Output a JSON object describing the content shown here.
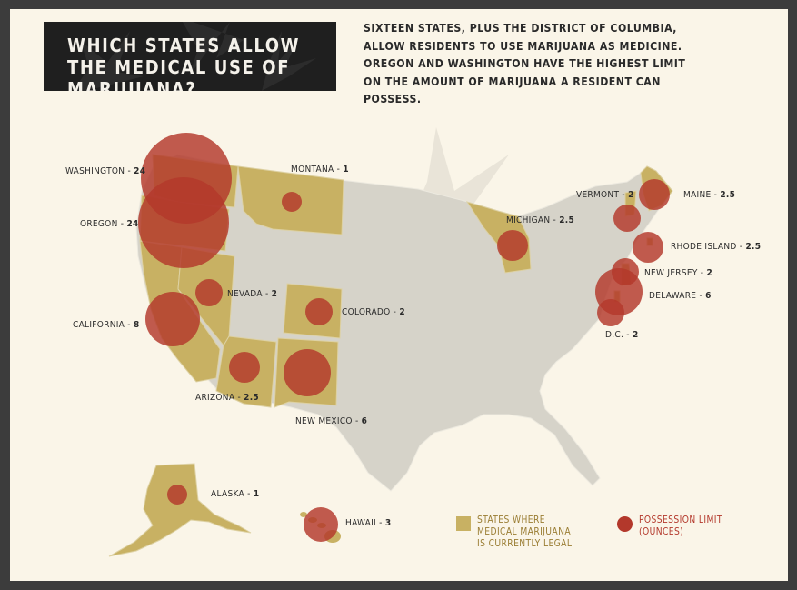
{
  "title": "WHICH STATES ALLOW THE MEDICAL USE OF MARIJUANA?",
  "intro": "SIXTEEN STATES, PLUS THE DISTRICT OF COLUMBIA, ALLOW RESIDENTS TO USE MARIJUANA AS MEDICINE. OREGON AND WASHINGTON HAVE THE HIGHEST LIMIT ON THE AMOUNT OF MARIJUANA A RESIDENT CAN POSSESS.",
  "colors": {
    "legal_state": "#c8b163",
    "possession_circle": "#b3382b",
    "map_base": "#d6d3c9",
    "background": "#faf5e8"
  },
  "states": [
    {
      "name": "WASHINGTON",
      "sep": " - ",
      "limit": "24",
      "value": 24
    },
    {
      "name": "OREGON",
      "sep": " - ",
      "limit": "24",
      "value": 24
    },
    {
      "name": "CALIFORNIA",
      "sep": " - ",
      "limit": "8",
      "value": 8
    },
    {
      "name": "NEVADA",
      "sep": " - ",
      "limit": "2",
      "value": 2
    },
    {
      "name": "MONTANA",
      "sep": " - ",
      "limit": "1",
      "value": 1
    },
    {
      "name": "COLORADO",
      "sep": " - ",
      "limit": "2",
      "value": 2
    },
    {
      "name": "ARIZONA",
      "sep": " - ",
      "limit": "2.5",
      "value": 2.5
    },
    {
      "name": "NEW MEXICO",
      "sep": " - ",
      "limit": "6",
      "value": 6
    },
    {
      "name": "MICHIGAN",
      "sep": " - ",
      "limit": "2.5",
      "value": 2.5
    },
    {
      "name": "VERMONT",
      "sep": " - ",
      "limit": "2",
      "value": 2
    },
    {
      "name": "MAINE",
      "sep": " - ",
      "limit": "2.5",
      "value": 2.5
    },
    {
      "name": "RHODE ISLAND",
      "sep": " - ",
      "limit": "2.5",
      "value": 2.5
    },
    {
      "name": "NEW JERSEY",
      "sep": " - ",
      "limit": "2",
      "value": 2
    },
    {
      "name": "DELAWARE",
      "sep": " - ",
      "limit": "6",
      "value": 6
    },
    {
      "name": "D.C.",
      "sep": " - ",
      "limit": "2",
      "value": 2
    },
    {
      "name": "ALASKA",
      "sep": " - ",
      "limit": "1",
      "value": 1
    },
    {
      "name": "HAWAII",
      "sep": " - ",
      "limit": "3",
      "value": 3
    }
  ],
  "legend": {
    "legal": "STATES WHERE\nMEDICAL MARIJUANA\nIS CURRENTLY LEGAL",
    "possession": "POSSESSION LIMIT\n(OUNCES)"
  }
}
